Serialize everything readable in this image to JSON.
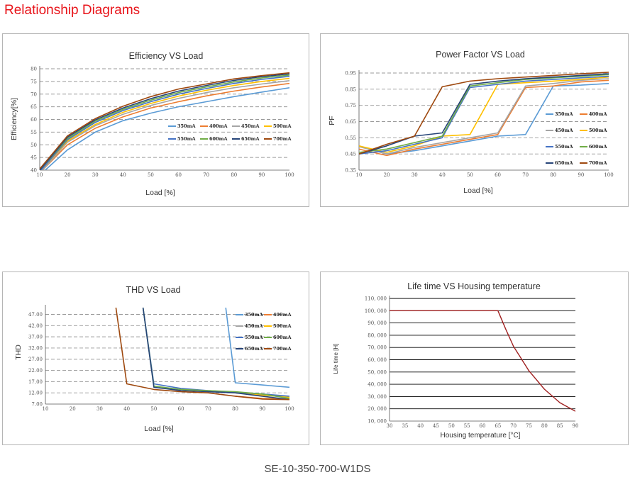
{
  "page": {
    "title": "Relationship Diagrams",
    "model": "SE-10-350-700-W1DS"
  },
  "colors": {
    "350mA": "#5b9bd5",
    "400mA": "#ed7d31",
    "450mA": "#a5a5a5",
    "500mA": "#ffc000",
    "550mA": "#4472c4",
    "600mA": "#70ad47",
    "650mA": "#264478",
    "700mA": "#9e480e",
    "life": "#a02020"
  },
  "chart_data": [
    {
      "id": "efficiency",
      "type": "line",
      "title": "Efficiency VS Load",
      "xlabel": "Load [%]",
      "ylabel": "Efficiency[%]",
      "xlim": [
        10,
        100
      ],
      "ylim": [
        40,
        80
      ],
      "x_ticks": [
        10,
        20,
        30,
        40,
        50,
        60,
        70,
        80,
        90,
        100
      ],
      "y_ticks": [
        40,
        45,
        50,
        55,
        60,
        65,
        70,
        75,
        80
      ],
      "grid": "horizontal dashed",
      "legend": "bottom-right, 2 rows",
      "series": [
        {
          "name": "350mA",
          "x": [
            12,
            20,
            30,
            40,
            50,
            60,
            70,
            80,
            90,
            100
          ],
          "y": [
            40,
            48,
            55,
            59.5,
            62.5,
            65,
            67,
            69,
            70.8,
            72.5
          ]
        },
        {
          "name": "400mA",
          "x": [
            11,
            20,
            30,
            40,
            50,
            60,
            70,
            80,
            90,
            100
          ],
          "y": [
            40,
            50,
            56.5,
            61,
            64.5,
            67,
            69.3,
            71.2,
            72.8,
            74.2
          ]
        },
        {
          "name": "450mA",
          "x": [
            11,
            20,
            30,
            40,
            50,
            60,
            70,
            80,
            90,
            100
          ],
          "y": [
            40,
            51,
            57.5,
            62,
            65.5,
            68.3,
            70.6,
            72.5,
            74,
            75.3
          ]
        },
        {
          "name": "500mA",
          "x": [
            10.5,
            20,
            30,
            40,
            50,
            60,
            70,
            80,
            90,
            100
          ],
          "y": [
            40,
            51.5,
            58,
            62.8,
            66.3,
            69.2,
            71.5,
            73.4,
            75,
            76.2
          ]
        },
        {
          "name": "550mA",
          "x": [
            10.5,
            20,
            30,
            40,
            50,
            60,
            70,
            80,
            90,
            100
          ],
          "y": [
            40,
            52,
            58.8,
            63.5,
            67,
            70,
            72.2,
            74.2,
            75.8,
            77
          ]
        },
        {
          "name": "600mA",
          "x": [
            10,
            20,
            30,
            40,
            50,
            60,
            70,
            80,
            90,
            100
          ],
          "y": [
            40,
            52.5,
            59.3,
            64,
            67.6,
            70.6,
            72.8,
            74.8,
            76.4,
            77.5
          ]
        },
        {
          "name": "650mA",
          "x": [
            10,
            20,
            30,
            40,
            50,
            60,
            70,
            80,
            90,
            100
          ],
          "y": [
            40,
            53,
            59.8,
            64.5,
            68.2,
            71.2,
            73.4,
            75.4,
            76.9,
            78
          ]
        },
        {
          "name": "700mA",
          "x": [
            10,
            20,
            30,
            40,
            50,
            60,
            70,
            80,
            90,
            100
          ],
          "y": [
            40.5,
            53.5,
            60.3,
            65.2,
            69,
            72,
            74,
            76,
            77.3,
            78.4
          ]
        }
      ]
    },
    {
      "id": "power-factor",
      "type": "line",
      "title": "Power Factor VS Load",
      "xlabel": "Load [%]",
      "ylabel": "PF",
      "xlim": [
        10,
        100
      ],
      "ylim": [
        0.35,
        0.95
      ],
      "x_ticks": [
        10,
        20,
        30,
        40,
        50,
        60,
        70,
        80,
        90,
        100
      ],
      "y_ticks": [
        0.35,
        0.45,
        0.55,
        0.65,
        0.75,
        0.85,
        0.95
      ],
      "grid": "horizontal dashed",
      "legend": "right, 4 rows",
      "series": [
        {
          "name": "350mA",
          "x": [
            10,
            20,
            30,
            40,
            50,
            60,
            70,
            80,
            90,
            100
          ],
          "y": [
            0.5,
            0.45,
            0.47,
            0.5,
            0.53,
            0.56,
            0.57,
            0.87,
            0.875,
            0.885
          ]
        },
        {
          "name": "400mA",
          "x": [
            10,
            20,
            30,
            40,
            50,
            60,
            70,
            80,
            90,
            100
          ],
          "y": [
            0.48,
            0.44,
            0.48,
            0.51,
            0.54,
            0.57,
            0.86,
            0.87,
            0.895,
            0.905
          ]
        },
        {
          "name": "450mA",
          "x": [
            10,
            20,
            30,
            40,
            50,
            60,
            70,
            80,
            90,
            100
          ],
          "y": [
            0.495,
            0.45,
            0.49,
            0.52,
            0.55,
            0.58,
            0.87,
            0.885,
            0.905,
            0.915
          ]
        },
        {
          "name": "500mA",
          "x": [
            10,
            20,
            30,
            40,
            50,
            60,
            70,
            80,
            90,
            100
          ],
          "y": [
            0.5,
            0.46,
            0.5,
            0.56,
            0.57,
            0.88,
            0.89,
            0.9,
            0.91,
            0.925
          ]
        },
        {
          "name": "550mA",
          "x": [
            10,
            20,
            30,
            40,
            50,
            60,
            70,
            80,
            90,
            100
          ],
          "y": [
            0.45,
            0.47,
            0.51,
            0.55,
            0.86,
            0.88,
            0.9,
            0.91,
            0.92,
            0.93
          ]
        },
        {
          "name": "600mA",
          "x": [
            10,
            20,
            30,
            40,
            50,
            60,
            70,
            80,
            90,
            100
          ],
          "y": [
            0.46,
            0.48,
            0.52,
            0.56,
            0.87,
            0.89,
            0.91,
            0.92,
            0.93,
            0.94
          ]
        },
        {
          "name": "650mA",
          "x": [
            10,
            20,
            30,
            40,
            50,
            60,
            70,
            80,
            90,
            100
          ],
          "y": [
            0.45,
            0.5,
            0.56,
            0.58,
            0.88,
            0.9,
            0.915,
            0.925,
            0.935,
            0.945
          ]
        },
        {
          "name": "700mA",
          "x": [
            10,
            20,
            30,
            40,
            50,
            60,
            70,
            80,
            90,
            100
          ],
          "y": [
            0.45,
            0.51,
            0.56,
            0.865,
            0.9,
            0.915,
            0.925,
            0.935,
            0.945,
            0.955
          ]
        }
      ]
    },
    {
      "id": "thd",
      "type": "line",
      "title": "THD VS Load",
      "xlabel": "Load [%]",
      "ylabel": "THD",
      "xlim": [
        10,
        100
      ],
      "ylim": [
        7,
        50
      ],
      "x_ticks": [
        10,
        20,
        30,
        40,
        50,
        60,
        70,
        80,
        90,
        100
      ],
      "y_ticks": [
        7.0,
        12.0,
        17.0,
        22.0,
        27.0,
        32.0,
        37.0,
        42.0,
        47.0
      ],
      "y_tick_labels": [
        "7.00",
        "12.00",
        "17.00",
        "22.00",
        "27.00",
        "32.00",
        "37.00",
        "42.00",
        "47.00"
      ],
      "grid": "horizontal dashed",
      "legend": "top-right, 4 rows",
      "series": [
        {
          "name": "350mA",
          "x": [
            76.5,
            80,
            90,
            100
          ],
          "y": [
            50,
            16.5,
            15.5,
            14.5
          ]
        },
        {
          "name": "400mA",
          "x": [
            80,
            90,
            100
          ],
          "y": [
            10.5,
            9.5,
            9.2
          ]
        },
        {
          "name": "450mA",
          "x": [
            80,
            90,
            100
          ],
          "y": [
            12,
            11,
            10
          ]
        },
        {
          "name": "500mA",
          "x": [
            80,
            90,
            100
          ],
          "y": [
            12,
            11,
            10
          ]
        },
        {
          "name": "550mA",
          "x": [
            46,
            50,
            60,
            70,
            80,
            90,
            100
          ],
          "y": [
            50,
            16,
            14,
            13,
            12.3,
            11.5,
            10.5
          ]
        },
        {
          "name": "600mA",
          "x": [
            46,
            50,
            60,
            70,
            80,
            90,
            100
          ],
          "y": [
            50,
            15,
            13.5,
            13,
            12.5,
            11.5,
            9.5
          ]
        },
        {
          "name": "650mA",
          "x": [
            46,
            50,
            60,
            70,
            80,
            90,
            100
          ],
          "y": [
            50,
            14.5,
            13,
            12.5,
            12,
            10.5,
            9
          ]
        },
        {
          "name": "700mA",
          "x": [
            36,
            40,
            50,
            60,
            70,
            80,
            90,
            100
          ],
          "y": [
            50,
            16,
            13.5,
            12.5,
            12,
            10.5,
            9.2,
            9
          ]
        }
      ]
    },
    {
      "id": "life-time",
      "type": "line",
      "title": "Life time VS Housing temperature",
      "xlabel": "Housing temperature [°C]",
      "ylabel": "Life time [H]",
      "xlim": [
        30,
        90
      ],
      "ylim": [
        10000,
        110000
      ],
      "x_ticks": [
        30,
        35,
        40,
        45,
        50,
        55,
        60,
        65,
        70,
        75,
        80,
        85,
        90
      ],
      "y_ticks": [
        10000,
        20000,
        30000,
        40000,
        50000,
        60000,
        70000,
        80000,
        90000,
        100000,
        110000
      ],
      "y_tick_labels": [
        "10, 000",
        "20, 000",
        "30, 000",
        "40, 000",
        "50, 000",
        "60, 000",
        "70, 000",
        "80, 000",
        "90, 000",
        "100, 000",
        "110, 000"
      ],
      "grid": "horizontal solid",
      "series": [
        {
          "x": [
            30,
            65,
            67.5,
            70,
            72.5,
            75,
            80,
            85,
            90
          ],
          "y": [
            100000,
            100000,
            85000,
            71000,
            61000,
            51000,
            36000,
            25000,
            18000
          ]
        }
      ]
    }
  ]
}
